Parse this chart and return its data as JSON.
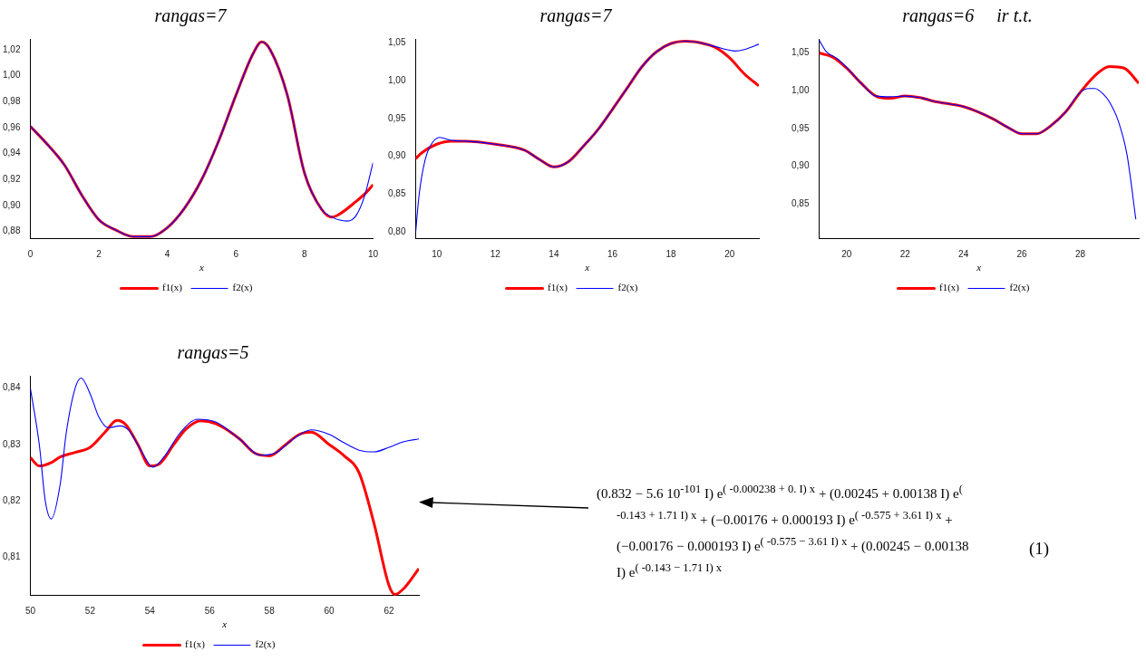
{
  "chart_data": [
    {
      "type": "line",
      "title": "rangas=7",
      "xlabel": "x",
      "legend": "bottom",
      "marker": "none",
      "xlim": [
        0,
        10
      ],
      "xticks": [
        0,
        2,
        4,
        6,
        8,
        10
      ],
      "ylim": [
        0.8743,
        1.0283
      ],
      "yticks": [
        {
          "value": 0.88,
          "label": "0,88"
        },
        {
          "value": 0.9,
          "label": "0,90"
        },
        {
          "value": 0.92,
          "label": "0,92"
        },
        {
          "value": 0.94,
          "label": "0,94"
        },
        {
          "value": 0.96,
          "label": "0,96"
        },
        {
          "value": 0.98,
          "label": "0,98"
        },
        {
          "value": 1.0,
          "label": "1,00"
        },
        {
          "value": 1.02,
          "label": "1,02"
        }
      ],
      "series": [
        {
          "name": "f1(x)",
          "color": "#ff0000",
          "x": [
            0,
            0.5,
            1,
            1.5,
            2,
            2.5,
            3,
            3.5,
            4,
            4.5,
            5,
            5.5,
            6,
            6.5,
            6.75,
            7,
            7.5,
            8,
            8.5,
            8.8,
            9,
            9.5,
            9.8,
            10
          ],
          "values": [
            0.961,
            0.947,
            0.931,
            0.908,
            0.889,
            0.881,
            0.876,
            0.876,
            0.883,
            0.898,
            0.92,
            0.95,
            0.985,
            1.017,
            1.026,
            1.02,
            0.985,
            0.925,
            0.897,
            0.891,
            0.893,
            0.903,
            0.91,
            0.916
          ]
        },
        {
          "name": "f2(x)",
          "color": "#0000ff",
          "x": [
            0,
            0.5,
            1,
            1.5,
            2,
            2.5,
            3,
            3.5,
            4,
            4.5,
            5,
            5.5,
            6,
            6.5,
            6.75,
            7,
            7.5,
            8,
            8.5,
            8.8,
            9,
            9.25,
            9.5,
            9.75,
            10
          ],
          "values": [
            0.961,
            0.947,
            0.931,
            0.908,
            0.889,
            0.881,
            0.876,
            0.876,
            0.883,
            0.898,
            0.92,
            0.95,
            0.985,
            1.017,
            1.026,
            1.02,
            0.985,
            0.925,
            0.897,
            0.891,
            0.889,
            0.888,
            0.892,
            0.907,
            0.933
          ]
        }
      ]
    },
    {
      "type": "line",
      "title": "rangas=7",
      "xlabel": "x",
      "legend": "bottom",
      "marker": "none",
      "xlim": [
        9.28,
        21
      ],
      "xticks": [
        10,
        12,
        14,
        16,
        18,
        20
      ],
      "ylim": [
        0.791,
        1.055
      ],
      "yticks": [
        {
          "value": 0.8,
          "label": "0,80"
        },
        {
          "value": 0.85,
          "label": "0,85"
        },
        {
          "value": 0.9,
          "label": "0,90"
        },
        {
          "value": 0.95,
          "label": "0,95"
        },
        {
          "value": 1.0,
          "label": "1,00"
        },
        {
          "value": 1.05,
          "label": "1,05"
        }
      ],
      "series": [
        {
          "name": "f1(x)",
          "color": "#ff0000",
          "x": [
            9.28,
            9.5,
            10,
            10.5,
            11,
            12,
            13,
            13.5,
            14,
            14.5,
            15,
            15.5,
            16,
            16.5,
            17,
            17.5,
            18,
            18.5,
            19,
            19.5,
            20,
            20.5,
            21
          ],
          "values": [
            0.897,
            0.905,
            0.916,
            0.92,
            0.92,
            0.916,
            0.908,
            0.896,
            0.886,
            0.893,
            0.913,
            0.935,
            0.962,
            0.99,
            1.018,
            1.038,
            1.049,
            1.052,
            1.05,
            1.044,
            1.03,
            1.009,
            0.993
          ]
        },
        {
          "name": "f2(x)",
          "color": "#0000ff",
          "x": [
            9.28,
            9.4,
            9.6,
            9.8,
            10.1,
            10.5,
            11,
            12,
            13,
            13.5,
            14,
            14.5,
            15,
            15.5,
            16,
            16.5,
            17,
            17.5,
            18,
            18.5,
            19,
            19.5,
            20,
            20.2,
            20.5,
            21
          ],
          "values": [
            0.8,
            0.85,
            0.895,
            0.915,
            0.925,
            0.921,
            0.92,
            0.916,
            0.908,
            0.896,
            0.886,
            0.893,
            0.913,
            0.935,
            0.962,
            0.99,
            1.018,
            1.038,
            1.049,
            1.052,
            1.05,
            1.045,
            1.04,
            1.039,
            1.041,
            1.048
          ]
        }
      ]
    },
    {
      "type": "line",
      "title": "rangas=6     ir t.t.",
      "xlabel": "x",
      "legend": "bottom",
      "marker": "none",
      "xlim": [
        19.06,
        30
      ],
      "xticks": [
        20,
        22,
        24,
        26,
        28
      ],
      "ylim": [
        0.804,
        1.0686
      ],
      "yticks": [
        {
          "value": 0.85,
          "label": "0,85"
        },
        {
          "value": 0.9,
          "label": "0,90"
        },
        {
          "value": 0.95,
          "label": "0,95"
        },
        {
          "value": 1.0,
          "label": "1,00"
        },
        {
          "value": 1.05,
          "label": "1,05"
        }
      ],
      "series": [
        {
          "name": "f1(x)",
          "color": "#ff0000",
          "x": [
            19.06,
            19.5,
            20,
            20.5,
            21,
            21.5,
            22,
            22.5,
            23,
            24,
            24.5,
            25,
            25.5,
            26,
            26.5,
            27,
            27.5,
            28,
            28.5,
            29,
            29.5,
            30
          ],
          "values": [
            1.05,
            1.045,
            1.03,
            1.01,
            0.993,
            0.99,
            0.993,
            0.991,
            0.986,
            0.979,
            0.972,
            0.963,
            0.952,
            0.943,
            0.943,
            0.954,
            0.972,
            0.998,
            1.02,
            1.032,
            1.03,
            1.01
          ]
        },
        {
          "name": "f2(x)",
          "color": "#0000ff",
          "x": [
            19.06,
            19.3,
            19.7,
            20,
            20.5,
            21,
            21.5,
            22,
            22.5,
            23,
            24,
            24.5,
            25,
            25.5,
            26,
            26.5,
            27,
            27.5,
            28,
            28.3,
            28.5,
            28.8,
            29,
            29.3,
            29.6,
            29.9
          ],
          "values": [
            1.067,
            1.052,
            1.042,
            1.031,
            1.01,
            0.993,
            0.992,
            0.993,
            0.991,
            0.986,
            0.979,
            0.972,
            0.963,
            0.952,
            0.943,
            0.943,
            0.954,
            0.972,
            0.998,
            1.003,
            1.003,
            0.995,
            0.985,
            0.96,
            0.915,
            0.83
          ]
        }
      ]
    },
    {
      "type": "line",
      "title": "rangas=5",
      "xlabel": "x",
      "legend": "bottom",
      "marker": "none",
      "xlim": [
        50,
        63
      ],
      "xticks": [
        50,
        52,
        54,
        56,
        58,
        60,
        62
      ],
      "ylim": [
        0.8032,
        0.8422
      ],
      "yticks": [
        {
          "value": 0.81,
          "label": "0,81"
        },
        {
          "value": 0.82,
          "label": "0,82"
        },
        {
          "value": 0.83,
          "label": "0,83"
        },
        {
          "value": 0.84,
          "label": "0,84"
        }
      ],
      "annotations": [
        "(0.832 − 5.6 10$^{-101}$ I) e$^{( -0.000238 + 0. I) x}$ + (0.00245 + 0.00138 I) e$^{( -0.143 + 1.71 I) x}$ + (−0.00176 + 0.000193 I) e$^{( -0.575 + 3.61 I) x}$ + (−0.00176 − 0.000193 I) e$^{( -0.575 − 3.61 I) x}$ + (0.00245 − 0.00138 I) e$^{( -0.143 − 1.71 I) x}$",
        "(1)"
      ],
      "series": [
        {
          "name": "f1(x)",
          "color": "#ff0000",
          "x": [
            50,
            50.3,
            50.7,
            51,
            51.5,
            52,
            52.5,
            52.9,
            53.2,
            53.6,
            54,
            54.3,
            54.8,
            55.2,
            55.7,
            56.2,
            57,
            57.5,
            58,
            58.5,
            59,
            59.4,
            60,
            60.5,
            61,
            61.5,
            62,
            62.2,
            62.5,
            63
          ],
          "values": [
            0.8277,
            0.8262,
            0.8268,
            0.8278,
            0.8286,
            0.8295,
            0.8322,
            0.8343,
            0.8335,
            0.83,
            0.8262,
            0.8265,
            0.83,
            0.8327,
            0.8342,
            0.8337,
            0.831,
            0.8285,
            0.828,
            0.8298,
            0.8318,
            0.8322,
            0.83,
            0.828,
            0.825,
            0.816,
            0.805,
            0.8034,
            0.8045,
            0.808
          ]
        },
        {
          "name": "f2(x)",
          "color": "#0000ff",
          "x": [
            50,
            50.3,
            50.5,
            50.7,
            51,
            51.2,
            51.5,
            51.7,
            52,
            52.3,
            52.6,
            53,
            53.3,
            53.7,
            54.1,
            54.5,
            55,
            55.6,
            56.2,
            57,
            57.7,
            58.2,
            58.8,
            59.4,
            60,
            60.5,
            61,
            61.5,
            62,
            62.5,
            63
          ],
          "values": [
            0.84,
            0.83,
            0.82,
            0.8168,
            0.823,
            0.832,
            0.84,
            0.8418,
            0.839,
            0.8348,
            0.833,
            0.8333,
            0.8325,
            0.829,
            0.826,
            0.828,
            0.832,
            0.8345,
            0.834,
            0.831,
            0.8281,
            0.8285,
            0.831,
            0.8326,
            0.8318,
            0.8303,
            0.829,
            0.8287,
            0.8295,
            0.8305,
            0.831
          ]
        }
      ]
    }
  ]
}
